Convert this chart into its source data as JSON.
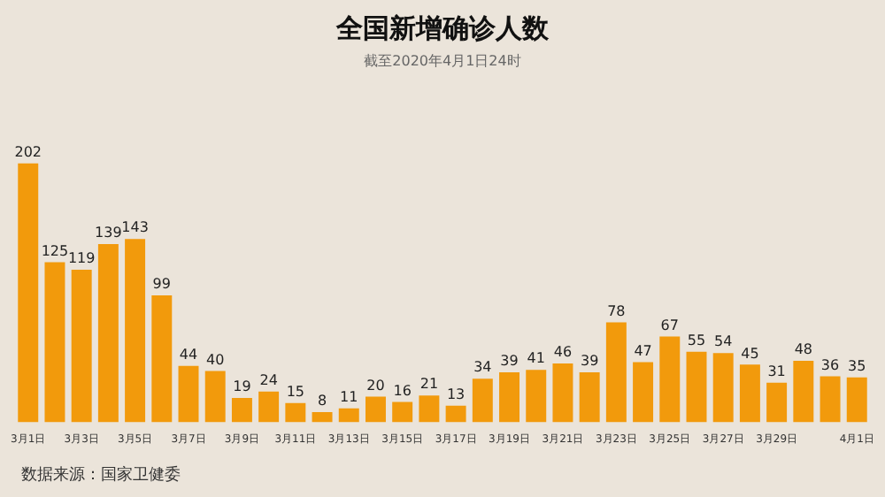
{
  "chart_data": {
    "type": "bar",
    "title": "全国新增确诊人数",
    "subtitle": "截至2020年4月1日24时",
    "categories": [
      "3月1日",
      null,
      "3月3日",
      null,
      "3月5日",
      null,
      "3月7日",
      null,
      "3月9日",
      null,
      "3月11日",
      null,
      "3月13日",
      null,
      "3月15日",
      null,
      "3月17日",
      null,
      "3月19日",
      null,
      "3月21日",
      null,
      "3月23日",
      null,
      "3月25日",
      null,
      "3月27日",
      null,
      "3月29日",
      null,
      null,
      "4月1日"
    ],
    "values": [
      202,
      125,
      119,
      139,
      143,
      99,
      44,
      40,
      19,
      24,
      15,
      8,
      11,
      20,
      16,
      21,
      13,
      34,
      39,
      41,
      46,
      39,
      78,
      47,
      67,
      55,
      54,
      45,
      31,
      48,
      36,
      35
    ],
    "color": "#f29a0c",
    "data_labels": true,
    "grid": false,
    "legend": false,
    "annotations": [
      "数据来源：国家卫健委"
    ]
  }
}
